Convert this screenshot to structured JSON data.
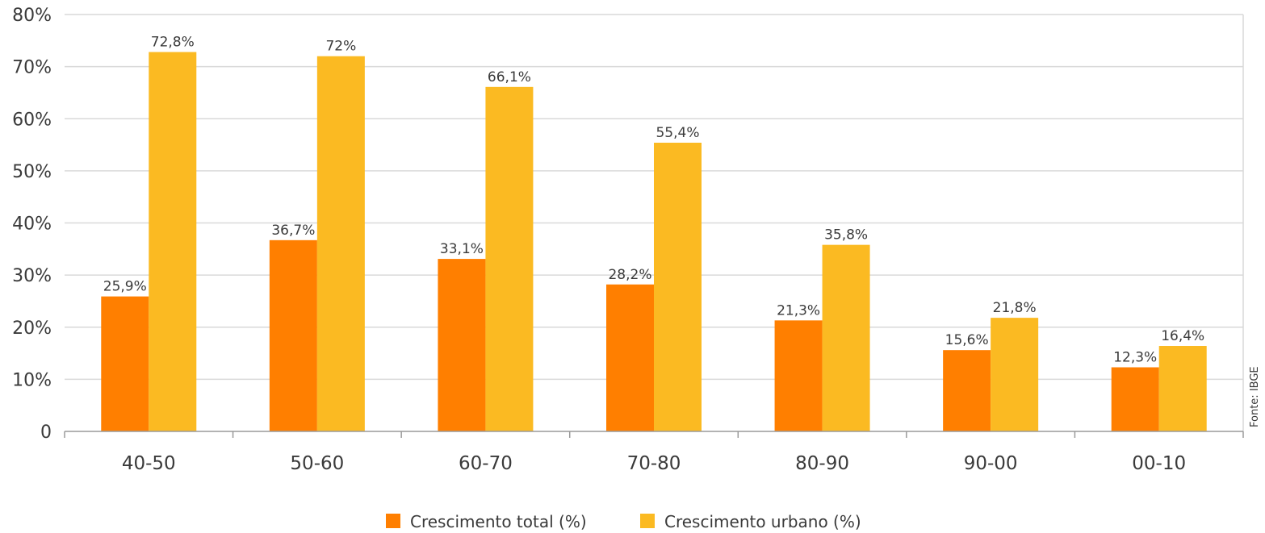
{
  "chart_data": {
    "type": "bar",
    "categories": [
      "40-50",
      "50-60",
      "60-70",
      "70-80",
      "80-90",
      "90-00",
      "00-10"
    ],
    "series": [
      {
        "name": "Crescimento total (%)",
        "color": "#FF7F00",
        "values": [
          25.9,
          36.7,
          33.1,
          28.2,
          21.3,
          15.6,
          12.3
        ],
        "labels": [
          "25,9%",
          "36,7%",
          "33,1%",
          "28,2%",
          "21,3%",
          "15,6%",
          "12,3%"
        ]
      },
      {
        "name": "Crescimento urbano (%)",
        "color": "#FBBA22",
        "values": [
          72.8,
          72,
          66.1,
          55.4,
          35.8,
          21.8,
          16.4
        ],
        "labels": [
          "72,8%",
          "72%",
          "66,1%",
          "55,4%",
          "35,8%",
          "21,8%",
          "16,4%"
        ]
      }
    ],
    "ylim": [
      0,
      80
    ],
    "yticks": [
      0,
      10,
      20,
      30,
      40,
      50,
      60,
      70,
      80
    ],
    "ytick_labels": [
      "0",
      "10%",
      "20%",
      "30%",
      "40%",
      "50%",
      "60%",
      "70%",
      "80%"
    ],
    "grid": true,
    "legend": "bottom-center",
    "source": "Fonte: IBGE",
    "title": "",
    "xlabel": "",
    "ylabel": ""
  }
}
